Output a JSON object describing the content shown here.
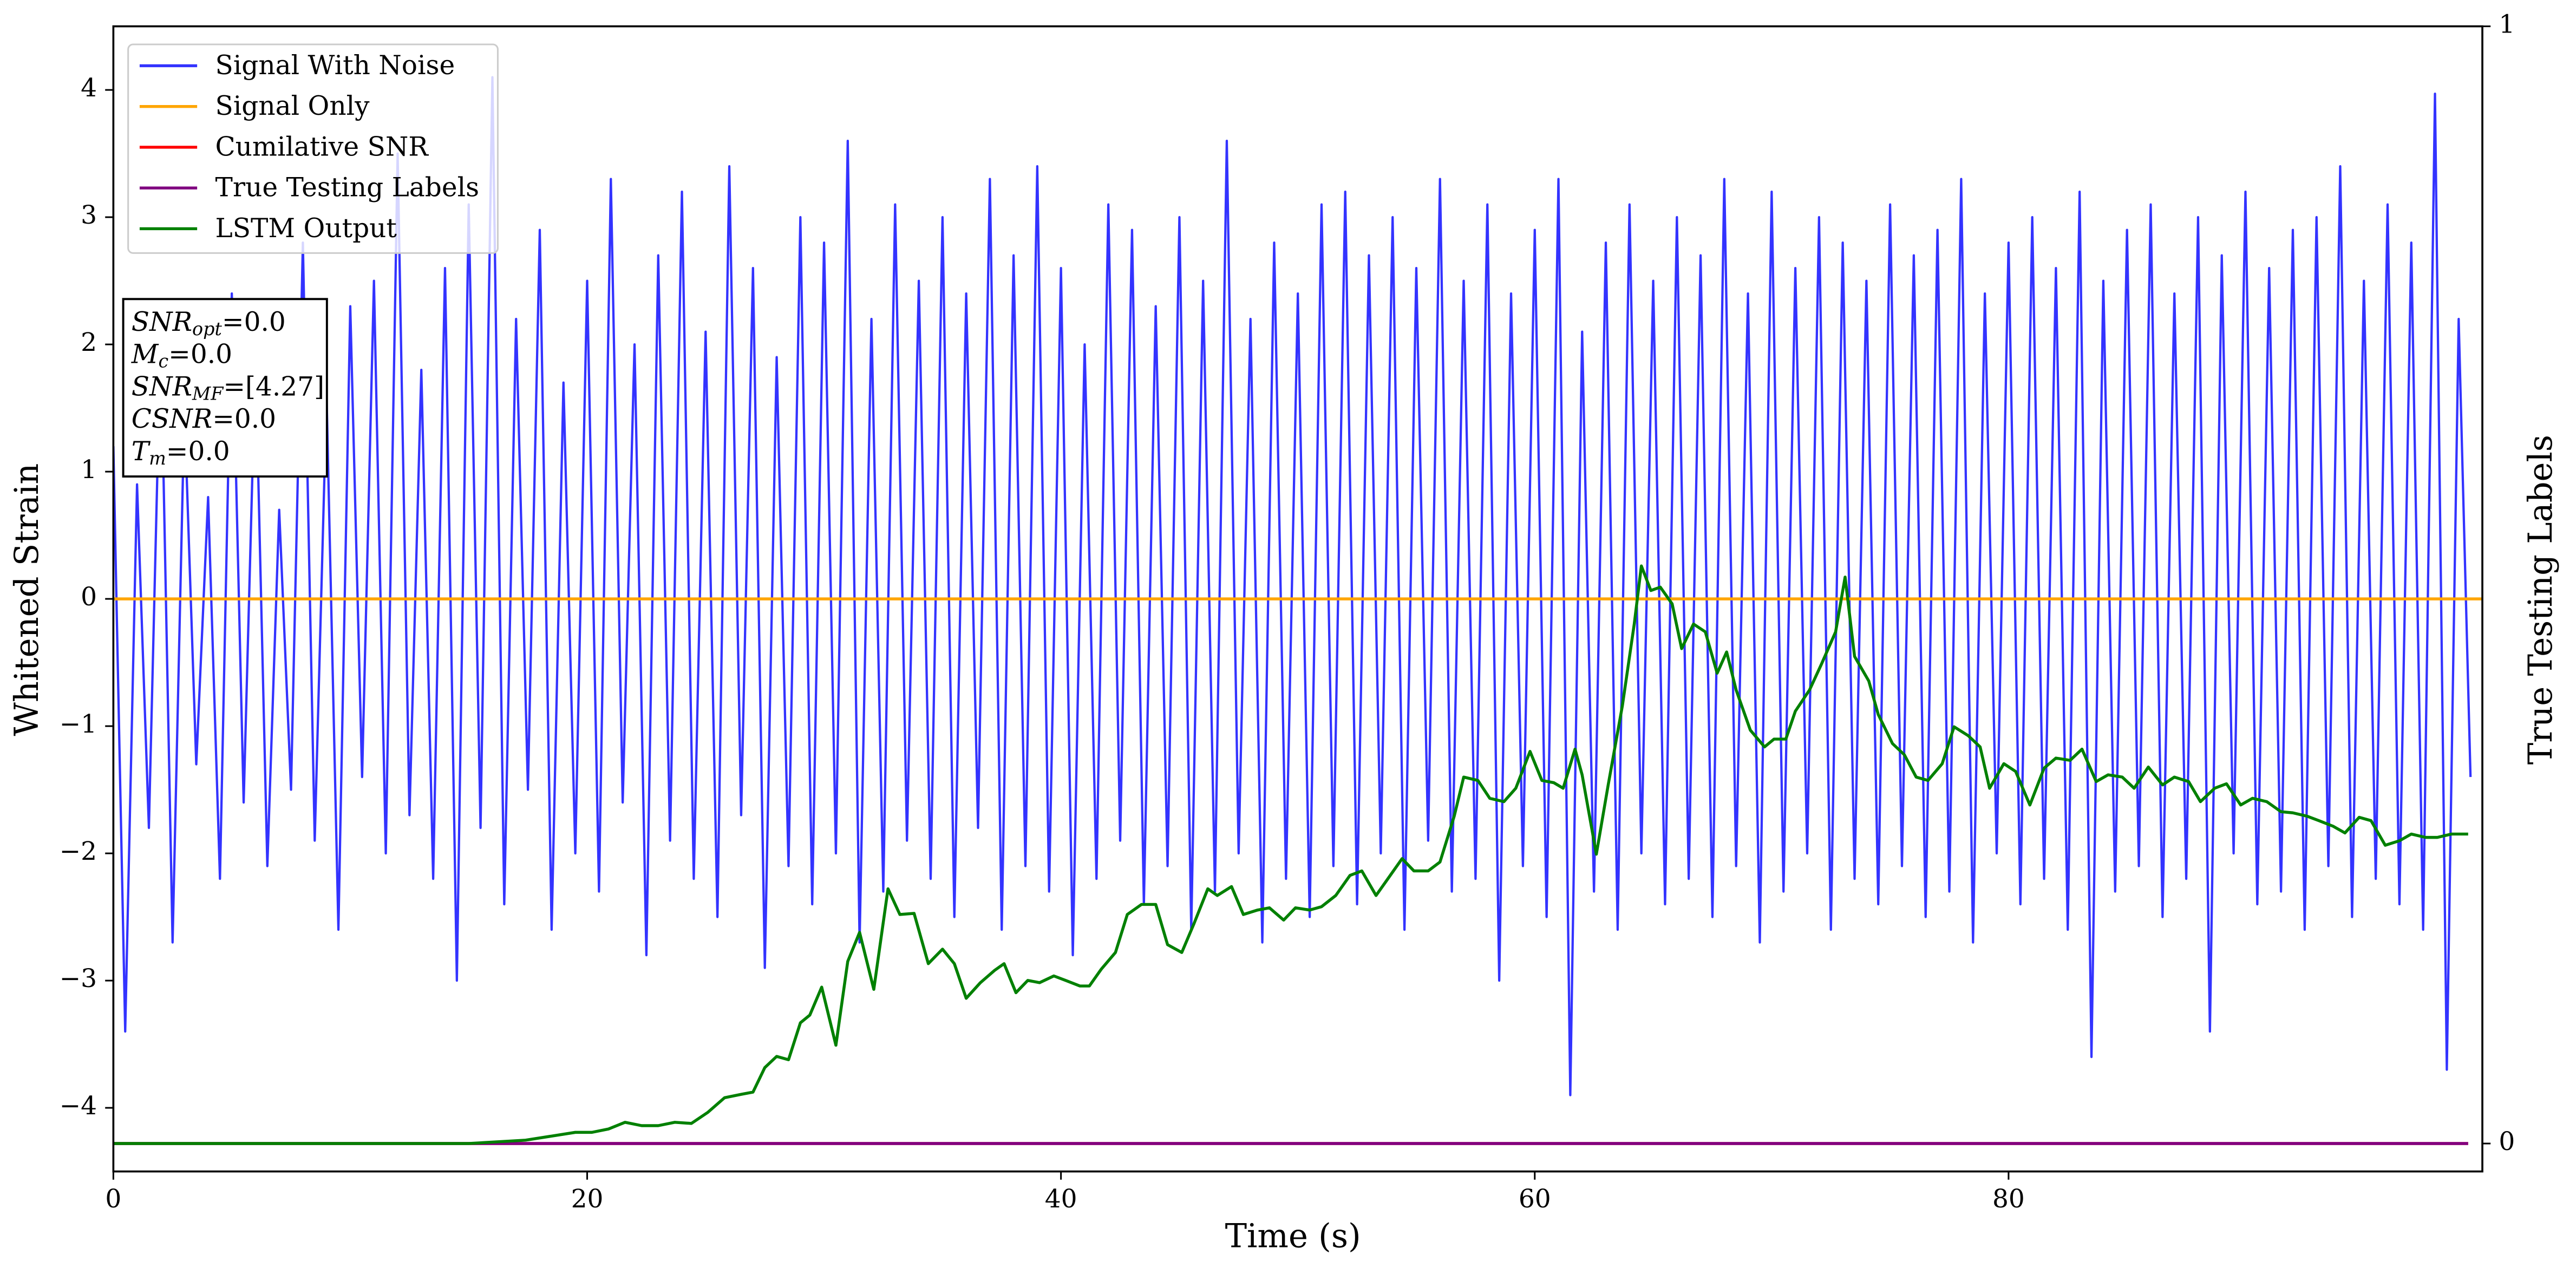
{
  "chart_data": {
    "type": "line",
    "xlabel": "Time (s)",
    "ylabel": "Whitened Strain",
    "y2label": "True Testing Labels",
    "xlim": [
      0,
      100
    ],
    "ylim": [
      -4.5,
      4.5
    ],
    "y2lim": [
      -0.025,
      1.0
    ],
    "xticks": [
      0,
      20,
      40,
      60,
      80
    ],
    "yticks": [
      {
        "value": -4,
        "label": "−4"
      },
      {
        "value": -3,
        "label": "−3"
      },
      {
        "value": -2,
        "label": "−2"
      },
      {
        "value": -1,
        "label": "−1"
      },
      0,
      1,
      2,
      3,
      4
    ],
    "y2ticks": [
      0,
      1
    ],
    "legend": "upper left",
    "series": [
      {
        "name": "Signal With Noise",
        "color": "#3333ff",
        "x": [
          0,
          0.5,
          1,
          1.5,
          2,
          2.5,
          3,
          3.5,
          4,
          4.5,
          5,
          5.5,
          6,
          6.5,
          7,
          7.5,
          8,
          8.5,
          9,
          9.5,
          10,
          10.5,
          11,
          11.5,
          12,
          12.5,
          13,
          13.5,
          14,
          14.5,
          15,
          15.5,
          16,
          16.5,
          17,
          17.5,
          18,
          18.5,
          19,
          19.5,
          20,
          20.5,
          21,
          21.5,
          22,
          22.5,
          23,
          23.5,
          24,
          24.5,
          25,
          25.5,
          26,
          26.5,
          27,
          27.5,
          28,
          28.5,
          29,
          29.5,
          30,
          30.5,
          31,
          31.5,
          32,
          32.5,
          33,
          33.5,
          34,
          34.5,
          35,
          35.5,
          36,
          36.5,
          37,
          37.5,
          38,
          38.5,
          39,
          39.5,
          40,
          40.5,
          41,
          41.5,
          42,
          42.5,
          43,
          43.5,
          44,
          44.5,
          45,
          45.5,
          46,
          46.5,
          47,
          47.5,
          48,
          48.5,
          49,
          49.5,
          50,
          50.5,
          51,
          51.5,
          52,
          52.5,
          53,
          53.5,
          54,
          54.5,
          55,
          55.5,
          56,
          56.5,
          57,
          57.5,
          58,
          58.5,
          59,
          59.5,
          60,
          60.5,
          61,
          61.5,
          62,
          62.5,
          63,
          63.5,
          64,
          64.5,
          65,
          65.5,
          66,
          66.5,
          67,
          67.5,
          68,
          68.5,
          69,
          69.5,
          70,
          70.5,
          71,
          71.5,
          72,
          72.5,
          73,
          73.5,
          74,
          74.5,
          75,
          75.5,
          76,
          76.5,
          77,
          77.5,
          78,
          78.5,
          79,
          79.5,
          80,
          80.5,
          81,
          81.5,
          82,
          82.5,
          83,
          83.5,
          84,
          84.5,
          85,
          85.5,
          86,
          86.5,
          87,
          87.5,
          88,
          88.5,
          89,
          89.5,
          90,
          90.5,
          91,
          91.5,
          92,
          92.5,
          93,
          93.5,
          94,
          94.5,
          95,
          95.5,
          96,
          96.5,
          97,
          97.5,
          98,
          98.5,
          99,
          99.5
        ],
        "values": [
          1.2,
          -3.4,
          0.9,
          -1.8,
          2.1,
          -2.7,
          1.5,
          -1.3,
          0.8,
          -2.2,
          2.4,
          -1.6,
          1.9,
          -2.1,
          0.7,
          -1.5,
          2.8,
          -1.9,
          1.6,
          -2.6,
          2.3,
          -1.4,
          2.5,
          -2.0,
          3.5,
          -1.7,
          1.8,
          -2.2,
          2.6,
          -3.0,
          3.1,
          -1.8,
          4.1,
          -2.4,
          2.2,
          -1.5,
          2.9,
          -2.6,
          1.7,
          -2.0,
          2.5,
          -2.3,
          3.3,
          -1.6,
          2.0,
          -2.8,
          2.7,
          -1.9,
          3.2,
          -2.2,
          2.1,
          -2.5,
          3.4,
          -1.7,
          2.6,
          -2.9,
          1.9,
          -2.1,
          3.0,
          -2.4,
          2.8,
          -2.0,
          3.6,
          -2.7,
          2.2,
          -2.3,
          3.1,
          -1.9,
          2.5,
          -2.2,
          3.0,
          -2.5,
          2.4,
          -1.8,
          3.3,
          -2.6,
          2.7,
          -2.1,
          3.4,
          -2.3,
          2.6,
          -2.8,
          2.0,
          -2.2,
          3.1,
          -1.9,
          2.9,
          -2.4,
          2.3,
          -2.1,
          3.0,
          -2.6,
          2.5,
          -2.3,
          3.6,
          -2.0,
          2.2,
          -2.7,
          2.8,
          -2.2,
          2.4,
          -2.5,
          3.1,
          -2.1,
          3.2,
          -2.4,
          2.7,
          -2.0,
          3.0,
          -2.6,
          2.6,
          -1.9,
          3.3,
          -2.3,
          2.5,
          -2.2,
          3.1,
          -3.0,
          2.4,
          -2.1,
          2.9,
          -2.5,
          3.3,
          -3.9,
          2.1,
          -2.3,
          2.8,
          -2.6,
          3.1,
          -2.0,
          2.5,
          -2.4,
          3.0,
          -2.2,
          2.7,
          -2.5,
          3.3,
          -2.1,
          2.4,
          -2.7,
          3.2,
          -2.3,
          2.6,
          -2.0,
          3.0,
          -2.6,
          2.8,
          -2.2,
          2.5,
          -2.4,
          3.1,
          -2.1,
          2.7,
          -2.5,
          2.9,
          -2.3,
          3.3,
          -2.7,
          2.4,
          -2.0,
          2.8,
          -2.4,
          3.0,
          -2.2,
          2.6,
          -2.6,
          3.2,
          -3.6,
          2.5,
          -2.3,
          2.9,
          -2.1,
          3.1,
          -2.5,
          2.4,
          -2.2,
          3.0,
          -3.4,
          2.7,
          -2.0,
          3.2,
          -2.4,
          2.6,
          -2.3,
          2.9,
          -2.6,
          3.0,
          -2.1,
          3.4,
          -2.5,
          2.5,
          -2.2,
          3.1,
          -2.4,
          2.8,
          -2.6,
          3.97,
          -3.7,
          2.2,
          -1.4
        ]
      },
      {
        "name": "Signal Only",
        "color": "orange",
        "x": [
          0,
          100
        ],
        "values": [
          0,
          0
        ]
      },
      {
        "name": "Cumilative SNR",
        "color": "red",
        "axis": "y2",
        "x": [
          0,
          99.4
        ],
        "values": [
          0,
          0
        ]
      },
      {
        "name": "True Testing Labels",
        "color": "purple",
        "axis": "y2",
        "x": [
          0,
          99.4
        ],
        "values": [
          0,
          0
        ]
      },
      {
        "name": "LSTM Output",
        "color": "green",
        "axis": "y2",
        "x": [
          0,
          5,
          10,
          15,
          17.4,
          19.5,
          20.2,
          20.9,
          21.6,
          22.3,
          23,
          23.7,
          24.4,
          25.1,
          25.8,
          26.5,
          27,
          27.5,
          28,
          28.5,
          29,
          29.4,
          29.9,
          30.5,
          31,
          31.5,
          32.1,
          32.7,
          33.2,
          33.8,
          34.4,
          35,
          35.5,
          36,
          36.6,
          37.2,
          37.6,
          38.1,
          38.6,
          39.1,
          39.7,
          40.2,
          40.8,
          41.2,
          41.7,
          42.3,
          42.8,
          43.4,
          44,
          44.5,
          45.1,
          45.6,
          46.2,
          46.6,
          47.2,
          47.7,
          48.3,
          48.8,
          49.4,
          49.9,
          50.5,
          51,
          51.6,
          52.2,
          52.7,
          53.3,
          53.8,
          54.4,
          54.9,
          55.5,
          56,
          56.6,
          57,
          57.6,
          58.1,
          58.7,
          59.2,
          59.8,
          60.3,
          60.8,
          61.2,
          61.7,
          62,
          62.6,
          63.1,
          63.7,
          64.2,
          64.5,
          64.9,
          65.3,
          65.8,
          66.2,
          66.7,
          67.2,
          67.7,
          68.1,
          68.5,
          69.1,
          69.7,
          70.1,
          70.6,
          71,
          71.6,
          72.1,
          72.7,
          73.1,
          73.5,
          74.1,
          74.5,
          75.1,
          75.6,
          76.1,
          76.6,
          77.2,
          77.7,
          78.3,
          78.8,
          79.2,
          79.8,
          80.3,
          80.9,
          81.5,
          82,
          82.6,
          83.1,
          83.7,
          84.2,
          84.8,
          85.3,
          85.9,
          86.5,
          87,
          87.6,
          88.1,
          88.7,
          89.2,
          89.8,
          90.3,
          90.9,
          91.5,
          92,
          92.6,
          93.1,
          93.7,
          94.2,
          94.8,
          95.3,
          95.9,
          96.5,
          97,
          97.6,
          98.1,
          98.7,
          99.4
        ],
        "values": [
          0,
          0,
          0,
          0,
          0.003,
          0.01,
          0.01,
          0.013,
          0.019,
          0.016,
          0.016,
          0.019,
          0.018,
          0.028,
          0.041,
          0.044,
          0.046,
          0.068,
          0.078,
          0.075,
          0.108,
          0.115,
          0.14,
          0.088,
          0.163,
          0.189,
          0.138,
          0.228,
          0.205,
          0.206,
          0.161,
          0.174,
          0.161,
          0.13,
          0.144,
          0.155,
          0.161,
          0.135,
          0.146,
          0.144,
          0.15,
          0.146,
          0.141,
          0.141,
          0.156,
          0.171,
          0.205,
          0.214,
          0.214,
          0.178,
          0.171,
          0.196,
          0.228,
          0.222,
          0.23,
          0.205,
          0.209,
          0.211,
          0.2,
          0.211,
          0.209,
          0.212,
          0.222,
          0.24,
          0.244,
          0.222,
          0.237,
          0.255,
          0.244,
          0.244,
          0.252,
          0.293,
          0.328,
          0.325,
          0.309,
          0.306,
          0.318,
          0.351,
          0.325,
          0.323,
          0.318,
          0.353,
          0.33,
          0.259,
          0.321,
          0.392,
          0.465,
          0.517,
          0.495,
          0.498,
          0.483,
          0.443,
          0.465,
          0.458,
          0.421,
          0.44,
          0.406,
          0.37,
          0.355,
          0.362,
          0.362,
          0.387,
          0.406,
          0.429,
          0.458,
          0.507,
          0.436,
          0.414,
          0.384,
          0.358,
          0.348,
          0.328,
          0.325,
          0.34,
          0.373,
          0.365,
          0.355,
          0.318,
          0.34,
          0.333,
          0.303,
          0.336,
          0.345,
          0.343,
          0.353,
          0.324,
          0.33,
          0.328,
          0.318,
          0.337,
          0.321,
          0.328,
          0.324,
          0.306,
          0.318,
          0.322,
          0.303,
          0.309,
          0.306,
          0.297,
          0.296,
          0.293,
          0.289,
          0.284,
          0.278,
          0.292,
          0.289,
          0.267,
          0.271,
          0.277,
          0.274,
          0.274,
          0.277,
          0.277
        ]
      }
    ],
    "annotations": [
      {
        "symbol": "SNR",
        "sub": "opt",
        "text": "=0.0"
      },
      {
        "symbol": "M",
        "sub": "c",
        "text": "=0.0"
      },
      {
        "symbol": "SNR",
        "sub": "MF",
        "text": "=[4.27]"
      },
      {
        "symbol": "CSNR",
        "text": "=0.0"
      },
      {
        "symbol": "T",
        "sub": "m",
        "text": "=0.0"
      }
    ]
  }
}
